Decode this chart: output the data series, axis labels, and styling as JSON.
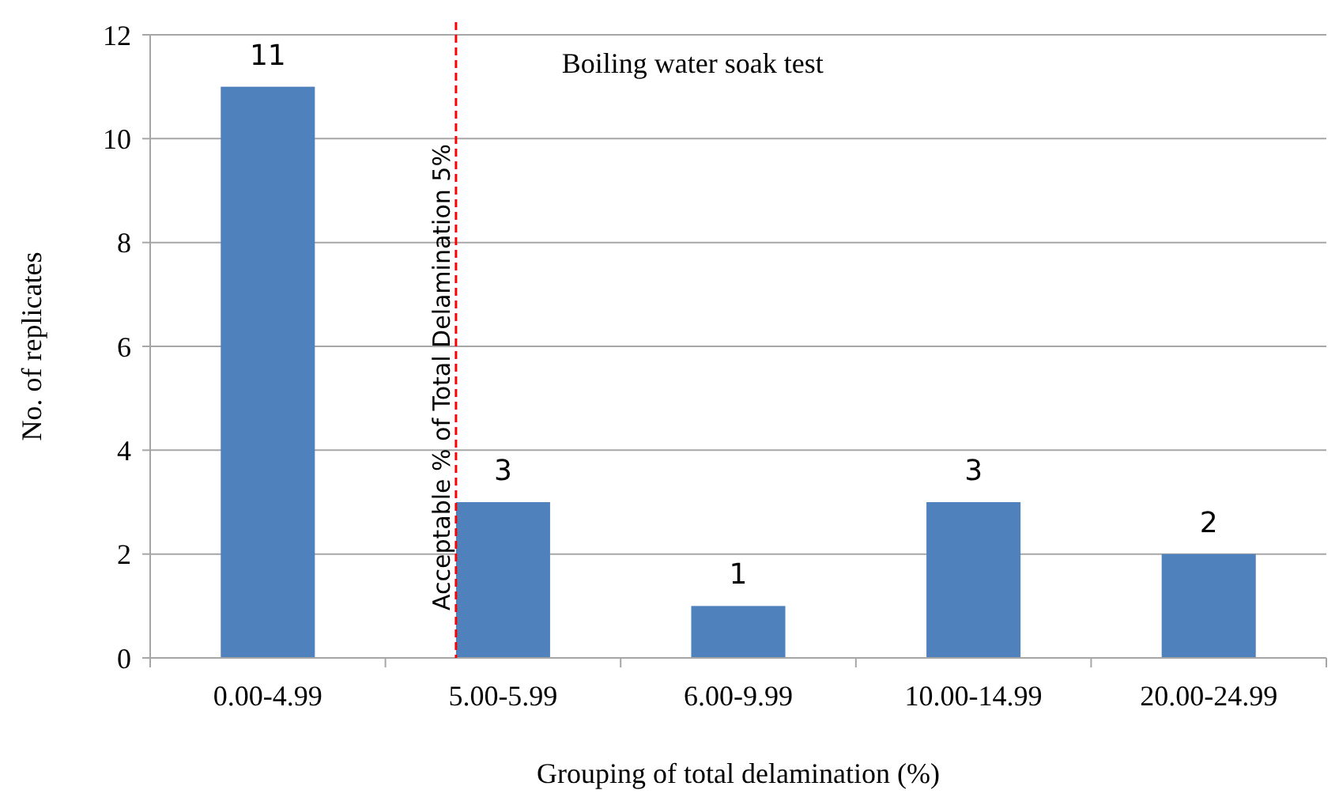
{
  "chart_data": {
    "type": "bar",
    "title": "Boiling water soak test",
    "xlabel": "Grouping of total delamination (%)",
    "ylabel": "No. of replicates",
    "categories": [
      "0.00-4.99",
      "5.00-5.99",
      "6.00-9.99",
      "10.00-14.99",
      "20.00-24.99"
    ],
    "values": [
      11,
      3,
      1,
      3,
      2
    ],
    "color": "#4f81bd",
    "data_labels": true,
    "ylim": [
      0,
      12
    ],
    "yticks": [
      0,
      2,
      4,
      6,
      8,
      10,
      12
    ],
    "grid": "y",
    "ref_lines": [
      {
        "axis": "x",
        "value": "5.00-5.99",
        "label": "Acceptable % of Total  Delamination 5%",
        "color": "#ff0000",
        "line_style": "dashed"
      }
    ]
  }
}
